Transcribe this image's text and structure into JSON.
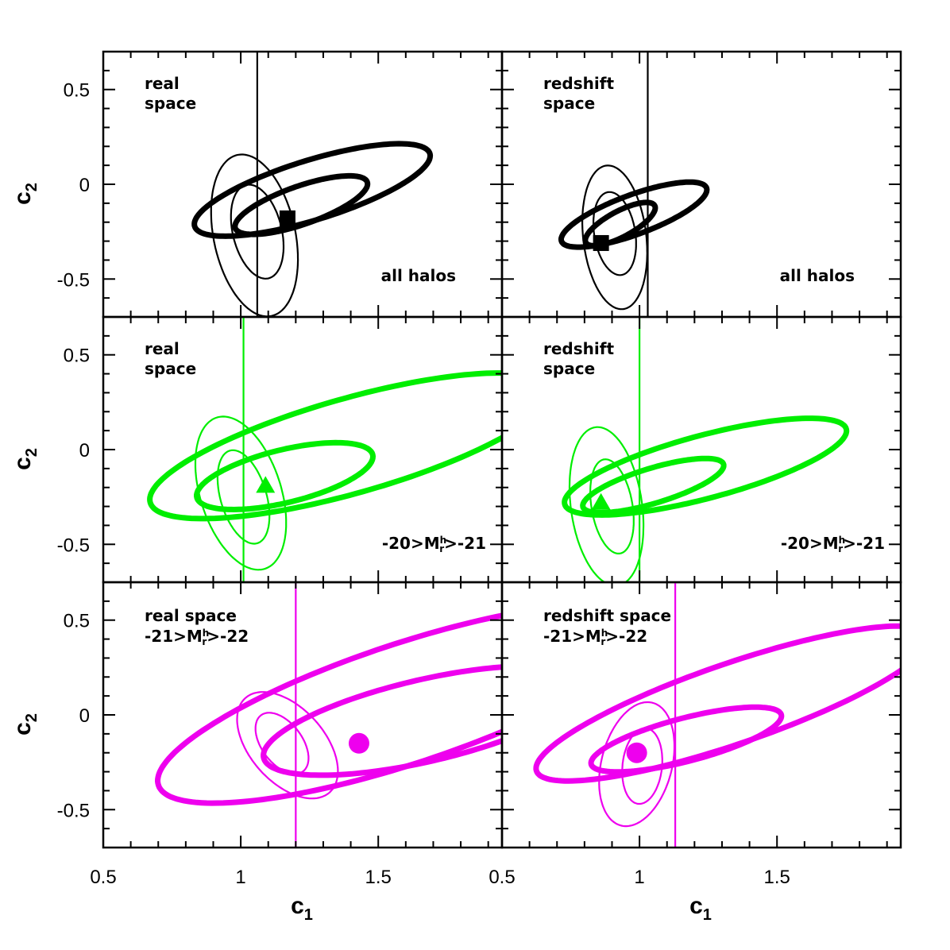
{
  "chart_data": {
    "type": "contour",
    "layout": {
      "rows": 3,
      "cols": 2,
      "shared_axes": true
    },
    "xlabel": {
      "base": "c",
      "sub": "1"
    },
    "ylabel": {
      "base": "c",
      "sub": "2"
    },
    "xlim": [
      0.5,
      1.95
    ],
    "ylim": [
      -0.7,
      0.7
    ],
    "x_ticks": [
      "0.5",
      "1",
      "1.5"
    ],
    "y_ticks": [
      "-0.5",
      "0",
      "0.5"
    ],
    "x_tick_values": [
      0.5,
      1.0,
      1.5
    ],
    "y_tick_values": [
      -0.5,
      0,
      0.5
    ],
    "colors": {
      "black": "#000000",
      "green": "#00ee00",
      "magenta": "#ee00ee"
    },
    "panels": [
      {
        "row": 0,
        "col": 0,
        "color": "black",
        "text_top": [
          "real",
          "space"
        ],
        "text_bottom": [
          "all halos"
        ],
        "vline_x": 1.06,
        "marker": {
          "shape": "square",
          "x": 1.17,
          "y": -0.18
        },
        "contours": [
          {
            "cx": 1.26,
            "cy": -0.03,
            "a": 0.47,
            "b": 0.15,
            "angle_deg": 25.6,
            "width": "thick"
          },
          {
            "cx": 1.22,
            "cy": -0.11,
            "a": 0.27,
            "b": 0.095,
            "angle_deg": 28.8,
            "width": "thick"
          },
          {
            "cx": 1.05,
            "cy": -0.27,
            "a": 0.43,
            "b": 0.15,
            "angle_deg": 97,
            "width": "thin"
          },
          {
            "cx": 1.06,
            "cy": -0.25,
            "a": 0.25,
            "b": 0.09,
            "angle_deg": 98,
            "width": "thin"
          }
        ]
      },
      {
        "row": 0,
        "col": 1,
        "color": "black",
        "text_top": [
          "redshift",
          "space"
        ],
        "text_bottom": [
          "all halos"
        ],
        "vline_x": 1.03,
        "marker": {
          "shape": "square",
          "x": 0.86,
          "y": -0.31
        },
        "contours": [
          {
            "cx": 0.98,
            "cy": -0.16,
            "a": 0.3,
            "b": 0.098,
            "angle_deg": 29.8,
            "width": "thick"
          },
          {
            "cx": 0.93,
            "cy": -0.21,
            "a": 0.16,
            "b": 0.06,
            "angle_deg": 40.9,
            "width": "thick"
          },
          {
            "cx": 0.91,
            "cy": -0.28,
            "a": 0.38,
            "b": 0.115,
            "angle_deg": 94.1,
            "width": "thin"
          },
          {
            "cx": 0.91,
            "cy": -0.26,
            "a": 0.22,
            "b": 0.075,
            "angle_deg": 95.6,
            "width": "thin"
          }
        ]
      },
      {
        "row": 1,
        "col": 0,
        "color": "green",
        "text_top": [
          "real",
          "space"
        ],
        "text_bottom": [
          "-20>M",
          "h",
          "r",
          ">-21"
        ],
        "vline_x": 1.01,
        "marker": {
          "shape": "triangle",
          "x": 1.09,
          "y": -0.19
        },
        "contours": [
          {
            "cx": 1.4,
            "cy": 0.02,
            "a": 0.79,
            "b": 0.24,
            "angle_deg": 23.5,
            "width": "thick"
          },
          {
            "cx": 1.16,
            "cy": -0.14,
            "a": 0.34,
            "b": 0.135,
            "angle_deg": 21.3,
            "width": "thick"
          },
          {
            "cx": 1.0,
            "cy": -0.23,
            "a": 0.41,
            "b": 0.15,
            "angle_deg": 100.4,
            "width": "thin"
          },
          {
            "cx": 1.01,
            "cy": -0.25,
            "a": 0.25,
            "b": 0.085,
            "angle_deg": 100,
            "width": "thin"
          }
        ]
      },
      {
        "row": 1,
        "col": 1,
        "color": "green",
        "text_top": [
          "redshift",
          "space"
        ],
        "text_bottom": [
          "-20>M",
          "h",
          "r",
          ">-21"
        ],
        "vline_x": 1.0,
        "marker": {
          "shape": "triangle",
          "x": 0.86,
          "y": -0.28
        },
        "contours": [
          {
            "cx": 1.24,
            "cy": -0.09,
            "a": 0.55,
            "b": 0.16,
            "angle_deg": 22.2,
            "width": "thick"
          },
          {
            "cx": 1.05,
            "cy": -0.19,
            "a": 0.28,
            "b": 0.088,
            "angle_deg": 25.1,
            "width": "thick"
          },
          {
            "cx": 0.88,
            "cy": -0.3,
            "a": 0.42,
            "b": 0.13,
            "angle_deg": 94.9,
            "width": "thin"
          },
          {
            "cx": 0.9,
            "cy": -0.3,
            "a": 0.25,
            "b": 0.075,
            "angle_deg": 96,
            "width": "thin"
          }
        ]
      },
      {
        "row": 2,
        "col": 0,
        "color": "magenta",
        "text_top": [
          "real space",
          "-21>M",
          "h",
          "r",
          ">-22"
        ],
        "text_bottom": [],
        "vline_x": 1.2,
        "marker": {
          "shape": "circle",
          "x": 1.43,
          "y": -0.15
        },
        "contours": [
          {
            "cx": 1.6,
            "cy": 0.06,
            "a": 1.0,
            "b": 0.3,
            "angle_deg": 26.9,
            "width": "thick"
          },
          {
            "cx": 1.67,
            "cy": -0.03,
            "a": 0.62,
            "b": 0.21,
            "angle_deg": 19.8,
            "width": "thick"
          },
          {
            "cx": 1.17,
            "cy": -0.16,
            "a": 0.3,
            "b": 0.15,
            "angle_deg": 113.9,
            "width": "thin"
          },
          {
            "cx": 1.15,
            "cy": -0.15,
            "a": 0.17,
            "b": 0.08,
            "angle_deg": 111,
            "width": "thin"
          }
        ]
      },
      {
        "row": 2,
        "col": 1,
        "color": "magenta",
        "text_top": [
          "redshift space",
          "-21>M",
          "h",
          "r",
          ">-22"
        ],
        "text_bottom": [],
        "vline_x": 1.13,
        "marker": {
          "shape": "circle",
          "x": 0.99,
          "y": -0.2
        },
        "contours": [
          {
            "cx": 1.34,
            "cy": 0.06,
            "a": 0.8,
            "b": 0.2,
            "angle_deg": 27.4,
            "width": "thick"
          },
          {
            "cx": 1.17,
            "cy": -0.13,
            "a": 0.37,
            "b": 0.11,
            "angle_deg": 21.7,
            "width": "thick"
          },
          {
            "cx": 0.99,
            "cy": -0.26,
            "a": 0.33,
            "b": 0.13,
            "angle_deg": 81.9,
            "width": "thin"
          },
          {
            "cx": 1.01,
            "cy": -0.27,
            "a": 0.2,
            "b": 0.072,
            "angle_deg": 86.5,
            "width": "thin"
          }
        ]
      }
    ]
  }
}
